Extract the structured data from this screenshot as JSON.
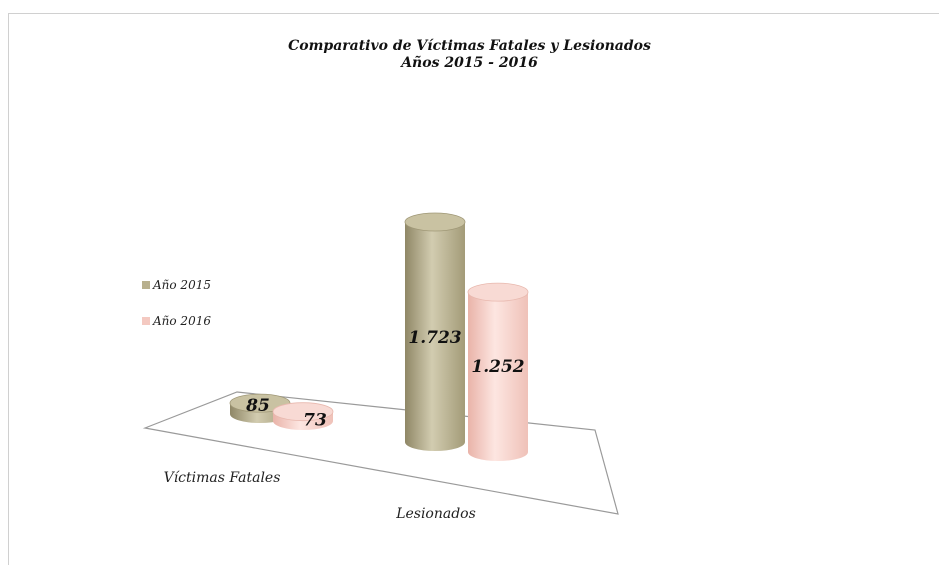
{
  "chart_data": {
    "type": "bar",
    "title": "Comparativo de Víctimas Fatales y Lesionados",
    "subtitle": "Años  2015 - 2016",
    "categories": [
      "Víctimas Fatales",
      "Lesionados"
    ],
    "series": [
      {
        "name": "Año 2015",
        "values": [
          85,
          1723
        ],
        "labels": [
          "85",
          "1.723"
        ],
        "color": "#b8b08e"
      },
      {
        "name": "Año 2016",
        "values": [
          73,
          1252
        ],
        "labels": [
          "73",
          "1.252"
        ],
        "color": "#f4c9c1"
      }
    ],
    "bar_shape": "cylinder",
    "legend_position": "left",
    "grid": false
  }
}
